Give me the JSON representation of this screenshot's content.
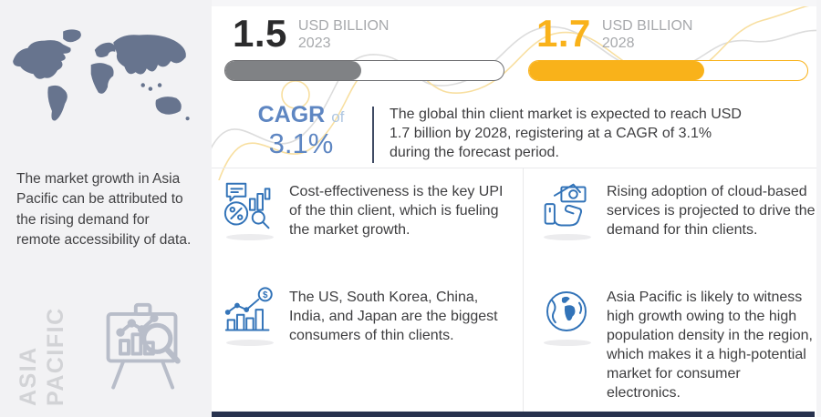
{
  "sidebar": {
    "paragraph": "The market growth in Asia Pacific can be attributed to the rising demand for remote accessibility of data.",
    "region_label": {
      "line1": "ASIA",
      "line2": "PACIFIC"
    }
  },
  "stats": [
    {
      "value": "1.5",
      "unit": "USD BILLION",
      "year": "2023",
      "fill_percent": 49
    },
    {
      "value": "1.7",
      "unit": "USD BILLION",
      "year": "2028",
      "fill_percent": 63
    }
  ],
  "cagr": {
    "label": "CAGR",
    "connector": "of",
    "value": "3.1%",
    "description": "The global thin client market is expected to reach USD 1.7 billion by 2028, registering at a CAGR of 3.1% during the forecast period."
  },
  "insights": [
    {
      "icon": "cost-analysis-icon",
      "text": "Cost-effectiveness is the key UPI of the thin client, which is fueling the market growth."
    },
    {
      "icon": "cash-in-hand-icon",
      "text": "Rising adoption of cloud-based services is projected to drive the demand for thin clients."
    },
    {
      "icon": "growth-bar-chart-icon",
      "text": "The US, South Korea, China, India, and Japan are the biggest consumers of thin clients."
    },
    {
      "icon": "globe-icon",
      "text": "Asia Pacific is likely to witness high growth owing to the high population density in the region, which makes it a high-potential market for consumer electronics."
    }
  ],
  "chart_data": {
    "type": "bar",
    "categories": [
      "2023",
      "2028"
    ],
    "values": [
      1.5,
      1.7
    ],
    "unit": "USD Billion",
    "cagr_percent": 3.1,
    "bar_fill_percents": [
      49,
      63
    ]
  },
  "colors": {
    "accent_yellow": "#F9B21A",
    "cagr_blue": "#5E86C2",
    "cagr_of_blue": "#AFC7E2",
    "icon_blue": "#3273B8",
    "bar_gray_fill": "#808285",
    "bar_gray_border": "#6D6E71",
    "stat_number_dark": "#2B2B2C",
    "meta_gray": "#A7A9AC",
    "body_text": "#3E3E40",
    "sidebar_bg": "#F2F2F4",
    "map_fill": "#67748E",
    "region_label_gray": "#D2D3D6",
    "easel_gray": "#B8BDC9",
    "divider": "#E9E9EB",
    "footer_navy": "#28324E",
    "wave_gray": "#DCDCDC",
    "wave_yellow": "#F8DFA0"
  }
}
